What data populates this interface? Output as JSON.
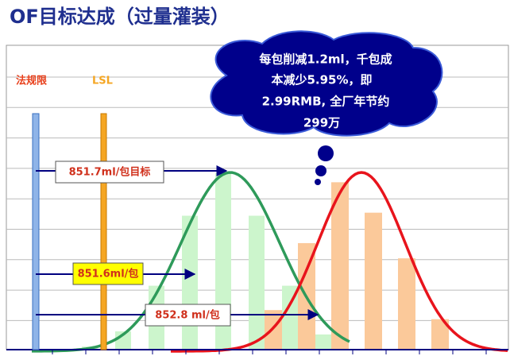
{
  "chart_data": {
    "type": "bar",
    "title": "OF目标达成（过量灌装）",
    "categories": [
      null,
      null,
      null,
      null,
      null,
      null,
      null,
      null,
      null,
      null,
      null,
      null,
      null
    ],
    "series": [
      {
        "color": "#ccf5cc",
        "values": [
          1,
          6,
          21,
          44,
          58,
          44,
          21,
          5,
          null,
          null,
          null,
          null,
          null
        ]
      },
      {
        "color": "#fbc99a",
        "values": [
          null,
          null,
          null,
          null,
          null,
          null,
          13,
          35,
          55,
          45,
          30,
          10,
          null
        ]
      }
    ],
    "ylim": [
      0,
      100
    ],
    "grid": true,
    "annotations": {
      "limit": "法规限",
      "lsl": "LSL",
      "target": "851.7ml/包目标",
      "mean_before": "851.6ml/包",
      "mean_after": "852.8 ml/包",
      "cloud": [
        "每包削减1.2ml，千包成",
        "本减少5.95%，即",
        "2.99RMB, 全厂年节约",
        "299万"
      ]
    }
  }
}
